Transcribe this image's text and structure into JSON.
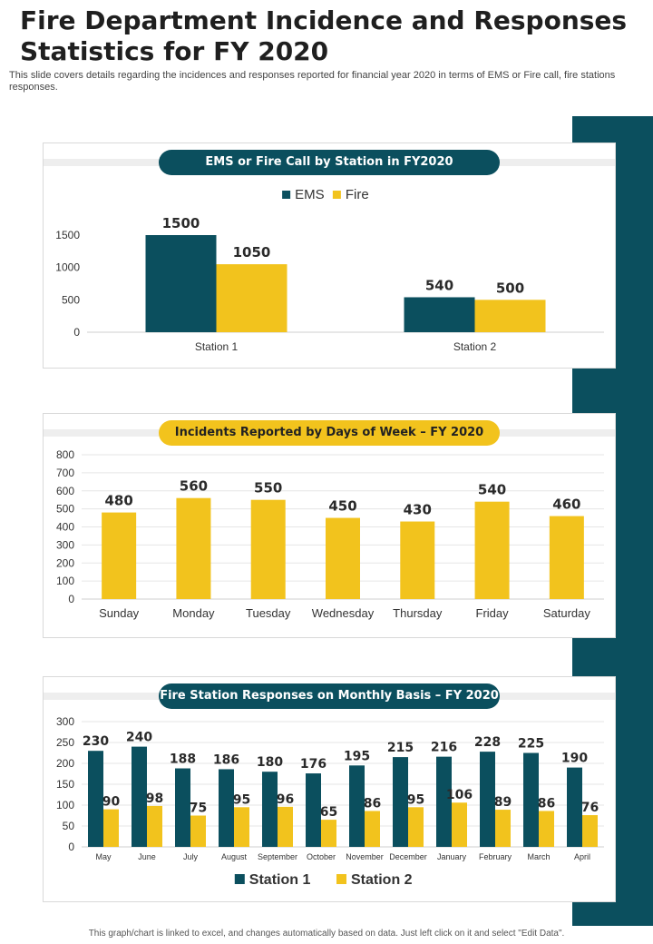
{
  "page": {
    "title": "Fire Department Incidence and Responses Statistics for FY 2020",
    "subtitle": "This slide covers details regarding the incidences and responses reported for financial year 2020 in terms of EMS  or Fire call, fire stations responses.",
    "footer": "This graph/chart is linked to excel, and changes automatically based on data. Just left click on it and select \"Edit Data\"."
  },
  "colors": {
    "teal": "#0b4f5e",
    "yellow": "#f2c31d",
    "grid": "#e6e6e6",
    "axis": "#cfcfcf",
    "label": "#333333"
  },
  "chart_data": [
    {
      "type": "bar",
      "title": "EMS or Fire Call by Station in FY2020",
      "categories": [
        "Station 1",
        "Station 2"
      ],
      "series": [
        {
          "name": "EMS",
          "values": [
            1500,
            540
          ]
        },
        {
          "name": "Fire",
          "values": [
            1050,
            500
          ]
        }
      ],
      "yticks": [
        0,
        500,
        1000,
        1500
      ],
      "ylim": [
        0,
        1500
      ],
      "legend": "top",
      "grid": false
    },
    {
      "type": "bar",
      "title": "Incidents Reported by Days of Week – FY 2020",
      "categories": [
        "Sunday",
        "Monday",
        "Tuesday",
        "Wednesday",
        "Thursday",
        "Friday",
        "Saturday"
      ],
      "series": [
        {
          "values": [
            480,
            560,
            550,
            450,
            430,
            540,
            460
          ]
        }
      ],
      "yticks": [
        0,
        100,
        200,
        300,
        400,
        500,
        600,
        700,
        800
      ],
      "ylim": [
        0,
        800
      ],
      "grid": true
    },
    {
      "type": "bar",
      "title": "Fire Station Responses on Monthly Basis – FY 2020",
      "categories": [
        "May",
        "June",
        "July",
        "August",
        "September",
        "October",
        "November",
        "December",
        "January",
        "February",
        "March",
        "April"
      ],
      "series": [
        {
          "name": "Station 1",
          "values": [
            230,
            240,
            188,
            186,
            180,
            176,
            195,
            215,
            216,
            228,
            225,
            190
          ]
        },
        {
          "name": "Station 2",
          "values": [
            90,
            98,
            75,
            95,
            96,
            65,
            86,
            95,
            106,
            89,
            86,
            76
          ]
        }
      ],
      "yticks": [
        0,
        50,
        100,
        150,
        200,
        250,
        300
      ],
      "ylim": [
        0,
        300
      ],
      "legend": "bottom",
      "grid": true
    }
  ]
}
